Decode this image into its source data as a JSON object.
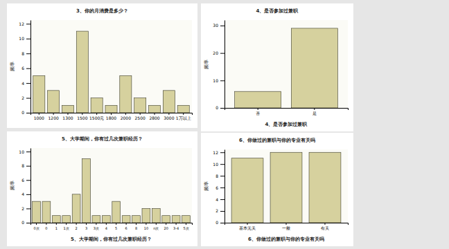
{
  "chart_data": [
    {
      "type": "bar",
      "title": "3、你的月消费是多少？",
      "ylabel": "频率",
      "categories": [
        "1000",
        "1200",
        "1300",
        "1500",
        "1500元",
        "1800",
        "2000",
        "2500",
        "2800",
        "3000",
        "1万以上"
      ],
      "values": [
        5,
        3,
        1,
        11,
        2,
        1,
        5,
        2,
        1,
        3,
        1
      ],
      "color": "#d6d19e",
      "ylim": [
        0,
        12.5
      ],
      "yticks": [
        0,
        2,
        4,
        6,
        8,
        10,
        12
      ],
      "grid": false
    },
    {
      "type": "bar",
      "title": "4、是否参加过兼职",
      "ylabel": "频率",
      "xlabel": "4、是否参加过兼职",
      "categories": [
        "否",
        "是"
      ],
      "values": [
        6,
        29
      ],
      "color": "#d6d19e",
      "ylim": [
        0,
        32
      ],
      "yticks": [
        0,
        10,
        20,
        30
      ],
      "grid": false
    },
    {
      "type": "bar",
      "title": "5、大学期间，你有过几次兼职经历？",
      "ylabel": "频率",
      "xlabel": "5、大学期间，你有过几次兼职经历？",
      "categories": [
        "0次",
        "0",
        "1",
        "1次",
        "2",
        "3",
        "3次",
        "4",
        "5",
        "6",
        "8",
        "10",
        "n次",
        "20",
        "3-4",
        "5次"
      ],
      "values": [
        3,
        3,
        1,
        1,
        4,
        9,
        1,
        1,
        3,
        1,
        1,
        2,
        2,
        1,
        1,
        1
      ],
      "color": "#d6d19e",
      "ylim": [
        0,
        10.5
      ],
      "yticks": [
        0,
        2,
        4,
        6,
        8,
        10
      ],
      "grid": false
    },
    {
      "type": "bar",
      "title": "6、你做过的兼职与你的专业有关吗",
      "ylabel": "频率",
      "xlabel": "6、你做过的兼职与你的专业有关吗",
      "categories": [
        "基本无关",
        "一般",
        "有关"
      ],
      "values": [
        11,
        12,
        12
      ],
      "color": "#d6d19e",
      "ylim": [
        0,
        12.5
      ],
      "yticks": [
        0,
        2,
        4,
        6,
        8,
        10,
        12
      ],
      "grid": false
    }
  ]
}
